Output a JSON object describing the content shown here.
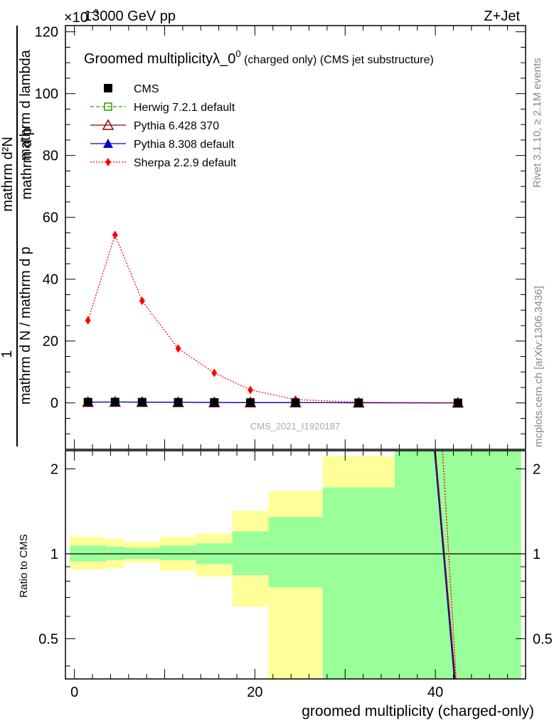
{
  "header": {
    "left": "13000 GeV pp",
    "right": "Z+Jet",
    "exponent_label": "×10",
    "exponent_power": "−3"
  },
  "right_labels": {
    "rivet": "Rivet 3.1.10, ≥ 2.1M events",
    "mcplots": "mcplots.cern.ch [arXiv:1306.3436]"
  },
  "colors": {
    "cms": "#000000",
    "herwig": "#339900",
    "pythia6": "#990000",
    "pythia8": "#0000cc",
    "sherpa": "#ff0000",
    "band_inner": "#99ff99",
    "band_outer": "#ffff99"
  },
  "chart_data": [
    {
      "type": "line",
      "title": "Groomed multiplicityλ_0⁰ (charged only) (CMS jet substructure)",
      "title_main": "Groomed multiplicityλ_0",
      "title_sup": "0",
      "title_rest": " (charged only) (CMS jet substructure)",
      "ylabel": "1 / mathrm d N / mathrm d p_T mathrm d²N / mathrm d p_T mathrm d lambda",
      "ylabel_parts": {
        "numerator_one": "1",
        "numerator_dN": "mathrm d²N",
        "denom_main": "mathrm d N / mathrm d p",
        "denom_mid": "mathrm d p",
        "denom_end": "mathrm d lambda",
        "subscript": "T"
      },
      "xlim": [
        -1,
        50
      ],
      "ylim": [
        -15,
        122
      ],
      "y_unit_scale": "×10⁻³",
      "yticks": [
        0,
        20,
        40,
        60,
        80,
        100,
        120
      ],
      "watermark": "CMS_2021_I1920187",
      "legend_position": "top-left",
      "x": [
        1.5,
        4.5,
        7.5,
        11.5,
        15.5,
        19.5,
        24.5,
        31.5,
        42.5
      ],
      "series": [
        {
          "name": "CMS",
          "style": "marker-square",
          "values": [
            0.25,
            0.3,
            0.25,
            0.2,
            0.15,
            0.12,
            0.1,
            0.05,
            0.02
          ]
        },
        {
          "name": "Herwig 7.2.1 default",
          "style": "dashed-open-square",
          "values": [
            0.25,
            0.3,
            0.25,
            0.2,
            0.15,
            0.12,
            0.1,
            0.05,
            0.02
          ]
        },
        {
          "name": "Pythia 6.428 370",
          "style": "solid-open-triangle",
          "values": [
            0.25,
            0.3,
            0.25,
            0.2,
            0.15,
            0.12,
            0.1,
            0.05,
            0.02
          ]
        },
        {
          "name": "Pythia 8.308 default",
          "style": "solid-filled-triangle",
          "values": [
            0.25,
            0.3,
            0.25,
            0.2,
            0.15,
            0.12,
            0.1,
            0.05,
            0.02
          ]
        },
        {
          "name": "Sherpa 2.2.9 default",
          "style": "dotted-diamond",
          "values": [
            26.7,
            54.3,
            33.0,
            17.6,
            9.7,
            4.2,
            1.1,
            0.2,
            0.05
          ]
        }
      ]
    },
    {
      "type": "area",
      "ylabel": "Ratio to CMS",
      "xlabel": "groomed multiplicity (charged-only)",
      "xlim": [
        -1,
        50
      ],
      "ylim": [
        0.36,
        2.32
      ],
      "y_scale": "log",
      "yticks": [
        0.5,
        1,
        2
      ],
      "xticks": [
        0,
        20,
        40
      ],
      "reference_line": 1,
      "bins": [
        {
          "lo": -0.5,
          "hi": 3.5,
          "inner": [
            0.94,
            1.07
          ],
          "outer": [
            0.88,
            1.15
          ]
        },
        {
          "lo": 3.5,
          "hi": 5.5,
          "inner": [
            0.95,
            1.06
          ],
          "outer": [
            0.89,
            1.13
          ]
        },
        {
          "lo": 5.5,
          "hi": 9.5,
          "inner": [
            0.96,
            1.05
          ],
          "outer": [
            0.93,
            1.1
          ]
        },
        {
          "lo": 9.5,
          "hi": 13.5,
          "inner": [
            0.95,
            1.07
          ],
          "outer": [
            0.87,
            1.15
          ]
        },
        {
          "lo": 13.5,
          "hi": 17.5,
          "inner": [
            0.92,
            1.09
          ],
          "outer": [
            0.83,
            1.18
          ]
        },
        {
          "lo": 17.5,
          "hi": 21.5,
          "inner": [
            0.84,
            1.2
          ],
          "outer": [
            0.65,
            1.42
          ]
        },
        {
          "lo": 21.5,
          "hi": 27.5,
          "inner": [
            0.76,
            1.35
          ],
          "outer": [
            0.36,
            1.67
          ]
        },
        {
          "lo": 27.5,
          "hi": 35.5,
          "inner": [
            0.36,
            1.72
          ],
          "outer": [
            0.36,
            2.22
          ]
        },
        {
          "lo": 35.5,
          "hi": 49.5,
          "inner": [
            0.36,
            2.32
          ],
          "outer": [
            0.36,
            2.32
          ]
        }
      ],
      "series": [
        {
          "name": "Herwig 7.2.1 default",
          "x": [
            40,
            42.2
          ],
          "values": [
            2.32,
            0.36
          ]
        },
        {
          "name": "Pythia 6.428 370",
          "x": [
            40,
            42.2
          ],
          "values": [
            2.32,
            0.36
          ]
        },
        {
          "name": "Pythia 8.308 default",
          "x": [
            39.9,
            42.1
          ],
          "values": [
            2.32,
            0.36
          ]
        },
        {
          "name": "Sherpa 2.2.9 default",
          "x": [
            40.8,
            42.3
          ],
          "values": [
            2.32,
            0.36
          ]
        }
      ]
    }
  ]
}
